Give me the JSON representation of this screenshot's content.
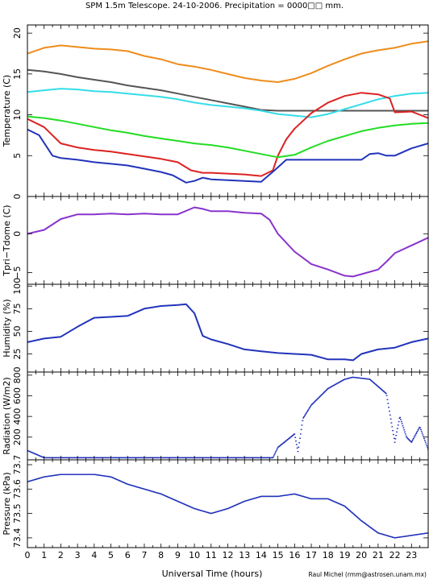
{
  "chart_data": {
    "title": "SPM 1.5m Telescope. 24-10-2006. Precipitation = 0000□□ mm.",
    "credit": "Raul Michel (rmm@astrosen.unam.mx)",
    "type": "line",
    "xlabel": "Universal Time (hours)",
    "xlim": [
      0,
      24
    ],
    "xticks": [
      "0",
      "1",
      "2",
      "3",
      "4",
      "5",
      "6",
      "7",
      "8",
      "9",
      "10",
      "11",
      "12",
      "13",
      "14",
      "15",
      "16",
      "17",
      "18",
      "19",
      "20",
      "21",
      "22",
      "23"
    ],
    "panels": [
      {
        "id": "temperature",
        "ylabel": "Temperature (C)",
        "ylim": [
          0,
          21
        ],
        "yticks": [
          0,
          5,
          10,
          15,
          20
        ],
        "series": [
          {
            "color": "#ee8c1c",
            "style": "line",
            "x": [
              0,
              1,
              2,
              3,
              4,
              5,
              6,
              7,
              8,
              9,
              10,
              11,
              12,
              13,
              14,
              15,
              16,
              17,
              18,
              19,
              20,
              21,
              22,
              23,
              24
            ],
            "y": [
              17.5,
              18.2,
              18.5,
              18.3,
              18.1,
              18.0,
              17.8,
              17.2,
              16.8,
              16.2,
              15.9,
              15.5,
              15.0,
              14.5,
              14.2,
              14.0,
              14.4,
              15.1,
              16.0,
              16.8,
              17.5,
              17.9,
              18.2,
              18.7,
              19.0
            ]
          },
          {
            "color": "#555555",
            "style": "line",
            "x": [
              0,
              1,
              2,
              3,
              4,
              5,
              6,
              7,
              8,
              9,
              10,
              11,
              12,
              13,
              14,
              15,
              16,
              17,
              18,
              19,
              20,
              21,
              22,
              23,
              24
            ],
            "y": [
              15.5,
              15.3,
              15.0,
              14.6,
              14.3,
              14.0,
              13.6,
              13.3,
              13.0,
              12.6,
              12.2,
              11.8,
              11.4,
              11.0,
              10.6,
              10.5,
              10.5,
              10.5,
              10.5,
              10.5,
              10.5,
              10.5,
              10.5,
              10.5,
              10.5
            ]
          },
          {
            "color": "#33dde8",
            "style": "line",
            "x": [
              0,
              1,
              2,
              3,
              4,
              5,
              6,
              7,
              8,
              9,
              10,
              11,
              12,
              13,
              14,
              15,
              16,
              17,
              18,
              19,
              20,
              21,
              22,
              23,
              24
            ],
            "y": [
              12.8,
              13.0,
              13.2,
              13.1,
              12.9,
              12.8,
              12.6,
              12.4,
              12.2,
              11.9,
              11.5,
              11.2,
              11.0,
              10.8,
              10.5,
              10.1,
              9.9,
              9.7,
              10.1,
              10.7,
              11.3,
              11.9,
              12.3,
              12.6,
              12.7
            ]
          },
          {
            "color": "#dd2222",
            "style": "line",
            "x": [
              0,
              1,
              2,
              3,
              4,
              5,
              6,
              7,
              8,
              9,
              9.8,
              10.5,
              11,
              12,
              13,
              14,
              14.7,
              15,
              15.5,
              16,
              17,
              18,
              19,
              20,
              21,
              21.7,
              22,
              23,
              24
            ],
            "y": [
              9.5,
              8.5,
              6.5,
              6.0,
              5.7,
              5.5,
              5.2,
              4.9,
              4.6,
              4.2,
              3.2,
              2.9,
              2.9,
              2.8,
              2.7,
              2.5,
              3.2,
              5.0,
              7.0,
              8.3,
              10.2,
              11.5,
              12.3,
              12.7,
              12.5,
              12.0,
              10.3,
              10.4,
              9.6
            ]
          },
          {
            "color": "#22dd22",
            "style": "line",
            "x": [
              0,
              1,
              2,
              3,
              4,
              5,
              6,
              7,
              8,
              9,
              10,
              11,
              12,
              13,
              14,
              15,
              16,
              17,
              18,
              19,
              20,
              21,
              22,
              23,
              24
            ],
            "y": [
              9.8,
              9.6,
              9.3,
              8.9,
              8.5,
              8.1,
              7.8,
              7.4,
              7.1,
              6.8,
              6.5,
              6.3,
              6.0,
              5.6,
              5.2,
              4.8,
              5.1,
              6.0,
              6.8,
              7.4,
              8.0,
              8.4,
              8.7,
              8.9,
              9.0
            ]
          },
          {
            "color": "#2233bb",
            "style": "line",
            "x": [
              0,
              0.7,
              1.5,
              2,
              3,
              4,
              5,
              6,
              7,
              8,
              8.7,
              9.5,
              10,
              10.5,
              11,
              12,
              13,
              14,
              14.8,
              15.5,
              16,
              17,
              18,
              19,
              20,
              20.5,
              21,
              21.5,
              22,
              23,
              24
            ],
            "y": [
              8.2,
              7.5,
              5.0,
              4.7,
              4.5,
              4.2,
              4.0,
              3.8,
              3.4,
              3.0,
              2.6,
              1.7,
              1.9,
              2.3,
              2.1,
              2.0,
              1.9,
              1.8,
              3.2,
              4.5,
              4.5,
              4.5,
              4.5,
              4.5,
              4.5,
              5.2,
              5.3,
              5.0,
              5.0,
              5.9,
              6.5
            ]
          }
        ]
      },
      {
        "id": "tpri-tdome",
        "ylabel": "Tpri−Tdome (C)",
        "ylim": [
          -6.5,
          4.8
        ],
        "yticks": [
          -5,
          0
        ],
        "series": [
          {
            "color": "#8833cc",
            "style": "line",
            "x": [
              0,
              1,
              2,
              3,
              4,
              5,
              6,
              7,
              8,
              9,
              10,
              10.5,
              11,
              12,
              13,
              14,
              14.5,
              15,
              16,
              17,
              18,
              19,
              19.5,
              20,
              21,
              21.5,
              22,
              23,
              24
            ],
            "y": [
              0.0,
              0.5,
              1.9,
              2.5,
              2.5,
              2.6,
              2.5,
              2.6,
              2.5,
              2.5,
              3.4,
              3.2,
              2.9,
              2.9,
              2.7,
              2.6,
              1.8,
              0.0,
              -2.3,
              -3.9,
              -4.6,
              -5.4,
              -5.5,
              -5.2,
              -4.6,
              -3.6,
              -2.5,
              -1.5,
              -0.5
            ]
          }
        ]
      },
      {
        "id": "humidity",
        "ylabel": "Humidity (%)",
        "ylim": [
          5,
          102
        ],
        "yticks": [
          25,
          50,
          75,
          100
        ],
        "ytick_labels": [
          "25",
          "50",
          "75",
          "100"
        ],
        "series": [
          {
            "color": "#2233bb",
            "style": "line",
            "x": [
              0,
              1,
              2,
              3,
              4,
              5,
              6,
              7,
              8,
              9,
              9.5,
              10,
              10.5,
              11,
              12,
              13,
              14,
              15,
              16,
              17,
              18,
              19,
              19.5,
              20,
              21,
              22,
              23,
              24
            ],
            "y": [
              38,
              42,
              44,
              55,
              65,
              66,
              67,
              75,
              78,
              79,
              80,
              70,
              45,
              41,
              36,
              30,
              28,
              26,
              25,
              24,
              19,
              19,
              18,
              25,
              30,
              32,
              38,
              42
            ]
          }
        ]
      },
      {
        "id": "radiation",
        "ylabel": "Radiation (W/m2)",
        "ylim": [
          -20,
          830
        ],
        "yticks": [
          200,
          400,
          600,
          800
        ],
        "ytick_labels": [
          "200",
          "400",
          "600",
          "800"
        ],
        "series": [
          {
            "color": "#2233bb",
            "style": "dots",
            "x": [
              0,
              0.5,
              1,
              2,
              3,
              4,
              5,
              6,
              7,
              8,
              9,
              10,
              11,
              12,
              13,
              14,
              14.7,
              15,
              16,
              16.2,
              16.5,
              17,
              18,
              19,
              19.5,
              20,
              20.5,
              21,
              21.5,
              22,
              22.3,
              22.7,
              23,
              23.5,
              24
            ],
            "y": [
              70,
              35,
              0,
              0,
              0,
              0,
              0,
              0,
              0,
              0,
              0,
              0,
              0,
              0,
              0,
              0,
              0,
              100,
              230,
              60,
              380,
              510,
              670,
              760,
              780,
              770,
              760,
              690,
              620,
              150,
              400,
              200,
              150,
              300,
              80
            ]
          }
        ]
      },
      {
        "id": "pressure",
        "ylabel": "Pressure (kPa)",
        "ylim": [
          73.36,
          73.72
        ],
        "yticks": [
          73.4,
          73.5,
          73.6,
          73.7
        ],
        "ytick_labels": [
          "73.4",
          "73.5",
          "73.6",
          "73.7"
        ],
        "series": [
          {
            "color": "#2233bb",
            "style": "dots",
            "x": [
              0,
              1,
              2,
              3,
              4,
              5,
              6,
              7,
              8,
              9,
              10,
              11,
              12,
              13,
              14,
              15,
              16,
              17,
              18,
              19,
              20,
              21,
              22,
              23,
              24
            ],
            "y": [
              73.63,
              73.65,
              73.66,
              73.66,
              73.66,
              73.65,
              73.62,
              73.6,
              73.58,
              73.55,
              73.52,
              73.5,
              73.52,
              73.55,
              73.57,
              73.57,
              73.58,
              73.56,
              73.56,
              73.53,
              73.47,
              73.42,
              73.4,
              73.41,
              73.42
            ]
          }
        ]
      }
    ]
  }
}
